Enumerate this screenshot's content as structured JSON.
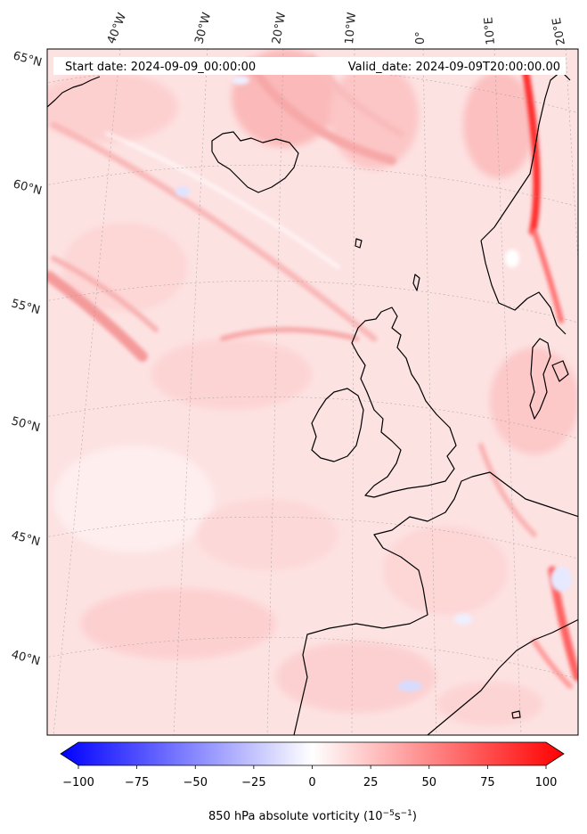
{
  "header": {
    "start_date": "Start date: 2024-09-09_00:00:00",
    "valid_date": "Valid_date: 2024-09-09T20:00:00.00"
  },
  "longitude_labels": [
    "40°W",
    "30°W",
    "20°W",
    "10°W",
    "0°",
    "10°E",
    "20°E"
  ],
  "latitude_labels": [
    "65°N",
    "60°N",
    "55°N",
    "50°N",
    "45°N",
    "40°N"
  ],
  "colorbar": {
    "ticks": [
      "−100",
      "−75",
      "−50",
      "−25",
      "0",
      "25",
      "50",
      "75",
      "100"
    ],
    "label_main": "850 hPa absolute vorticity (10",
    "label_exp1": "−5",
    "label_mid": "s",
    "label_exp2": "−1",
    "label_end": ")",
    "min": -100,
    "max": 100,
    "colors": {
      "negative": "#0000ff",
      "zero": "#ffffff",
      "positive": "#ff0000"
    }
  }
}
